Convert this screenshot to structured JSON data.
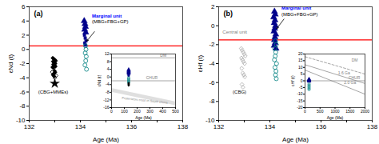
{
  "chart_data": [
    {
      "type": "scatter",
      "title": "(a)",
      "xlabel": "Age (Ma)",
      "ylabel": "εNd (t)",
      "xlim": [
        132,
        138
      ],
      "ylim": [
        -10,
        6
      ],
      "xticks": [
        132,
        {
          "value": 133,
          "label": ""
        },
        134,
        {
          "value": 135,
          "label": ""
        },
        136,
        {
          "value": 137,
          "label": ""
        },
        138
      ],
      "yticks": [
        -10,
        -8,
        -6,
        -4,
        -2,
        0,
        2,
        4,
        6
      ],
      "hlines": [
        {
          "y": 0.5,
          "color": "red"
        }
      ],
      "series": [
        {
          "color": "#000000",
          "marker": "diamond",
          "x": [
            132.92,
            132.95,
            132.98,
            133.01,
            133.04,
            132.93,
            132.96,
            132.99,
            133.02,
            132.94,
            132.97,
            133.0,
            133.03,
            132.91,
            132.95,
            132.99,
            133.02,
            132.96,
            132.93,
            132.98
          ],
          "values": [
            -1.2,
            -1.3,
            -1.4,
            -1.5,
            -1.6,
            -1.7,
            -1.8,
            -1.9,
            -2.0,
            -2.1,
            -2.2,
            -2.3,
            -2.4,
            -2.5,
            -2.6,
            -3.0,
            -3.2,
            -3.4,
            -3.6,
            -3.8
          ]
        },
        {
          "color": "#000000",
          "marker": "open diamond",
          "x": [
            132.9,
            132.95,
            133.05,
            133.0
          ],
          "values": [
            -3.2,
            -3.5,
            -3.7,
            -4.0
          ]
        },
        {
          "color": "#000000",
          "marker": "star",
          "x": [
            133.0
          ],
          "values": [
            -4.8
          ]
        },
        {
          "color": "#00008B",
          "marker": "triangle",
          "x": [
            134.15,
            134.18,
            134.2,
            134.17,
            134.21
          ],
          "values": [
            4.0,
            3.6,
            3.2,
            2.8,
            2.4
          ]
        },
        {
          "color": "#00008B",
          "marker": "square",
          "x": [
            134.16,
            134.19,
            134.22,
            134.17,
            134.2
          ],
          "values": [
            2.0,
            1.6,
            1.2,
            0.9,
            0.6
          ]
        },
        {
          "color": "#008080",
          "marker": "open circle",
          "x": [
            134.2,
            134.22,
            134.19,
            134.23,
            134.21,
            134.18,
            134.24
          ],
          "values": [
            0.5,
            0.0,
            -0.5,
            -1.0,
            -1.6,
            -2.2,
            -2.8
          ]
        }
      ],
      "annotations": [
        {
          "text": "(CBG+MMEs)",
          "x": 132.35,
          "y": -6.2,
          "color": "black"
        },
        {
          "text": "Marginal unit",
          "x": 134.45,
          "y": 4.5,
          "color": "blue",
          "font_weight": "bold"
        },
        {
          "text": "(MBG+FBG+GP)",
          "x": 134.45,
          "y": 3.65,
          "color": "black"
        }
      ],
      "arrows": [
        {
          "x1": 134.55,
          "y1": 2.5,
          "x2": 134.26,
          "y2": 1.2,
          "color": "black"
        }
      ]
    },
    {
      "type": "scatter",
      "xlabel": "Age (Ma)",
      "ylabel": "εNd (t)",
      "xlim": [
        0,
        500
      ],
      "ylim": [
        -16,
        12
      ],
      "xticks": [
        0,
        100,
        200,
        300,
        400,
        500
      ],
      "yticks": [
        -16,
        -12,
        -8,
        -4,
        0,
        4,
        8,
        12
      ],
      "hlines": [
        {
          "y": -2,
          "color": "gray",
          "label": "CHUR",
          "label_x": 270,
          "label_y": -1.2
        }
      ],
      "lines": [
        {
          "x": [
            0,
            500
          ],
          "values": [
            10,
            10
          ],
          "color": "gray",
          "line_style": "solid",
          "label": "DM",
          "label_x": 380,
          "label_y": 10.5
        }
      ],
      "bands": [
        {
          "x": [
            0,
            500
          ],
          "upper": [
            -6,
            -13
          ],
          "lower": [
            -8,
            -15
          ],
          "color": "gray",
          "label": "Proterozoic crust in South China",
          "label_x": 80,
          "label_y": -11.5
        }
      ],
      "series": [
        {
          "color": "#00008B",
          "marker": "triangle",
          "x": [
            134,
            134,
            134,
            134,
            134
          ],
          "values": [
            3.8,
            3.3,
            2.8,
            2.3,
            1.9
          ]
        },
        {
          "color": "#00008B",
          "marker": "square",
          "x": [
            134,
            134,
            134
          ],
          "values": [
            1.4,
            1.0,
            0.6
          ]
        },
        {
          "color": "#008080",
          "marker": "open circle",
          "x": [
            134,
            134,
            134,
            134
          ],
          "values": [
            -0.5,
            -1.2,
            -2.0,
            -2.8
          ]
        },
        {
          "color": "#000000",
          "marker": "diamond",
          "x": [
            134,
            134,
            134,
            134
          ],
          "values": [
            -3.2,
            -3.6,
            -4.0,
            -4.4
          ]
        }
      ]
    },
    {
      "type": "scatter",
      "title": "(b)",
      "xlabel": "Age (Ma)",
      "ylabel": "εHf (t)",
      "xlim": [
        132,
        138
      ],
      "ylim": [
        -10,
        2
      ],
      "xticks": [
        132,
        {
          "value": 133,
          "label": ""
        },
        134,
        {
          "value": 135,
          "label": ""
        },
        136,
        {
          "value": 137,
          "label": ""
        },
        138
      ],
      "yticks": [
        -10,
        -8,
        -6,
        -4,
        -2,
        0,
        2
      ],
      "hlines": [
        {
          "y": -1.5,
          "color": "red"
        }
      ],
      "series": [
        {
          "color": "#AAAAAA",
          "marker": "open diamond",
          "x": [
            132.88,
            132.92,
            132.96,
            133.0,
            133.04,
            132.89,
            132.93,
            132.97,
            133.01,
            132.9,
            132.94,
            132.98,
            133.02,
            132.91,
            132.95
          ],
          "values": [
            -2.4,
            -2.6,
            -2.8,
            -3.0,
            -3.2,
            -3.4,
            -3.6,
            -3.8,
            -4.0,
            -4.5,
            -5.0,
            -5.2,
            -5.4,
            -6.2,
            -6.5
          ]
        },
        {
          "color": "#00008B",
          "marker": "triangle",
          "x": [
            134.18,
            134.21,
            134.15,
            134.2,
            134.17,
            134.22,
            134.19,
            134.16,
            134.23,
            134.2,
            134.18,
            134.21,
            134.17,
            134.24
          ],
          "values": [
            1.5,
            1.2,
            0.9,
            0.6,
            0.3,
            0.0,
            -0.3,
            -0.6,
            -0.9,
            -1.2,
            -1.5,
            -1.8,
            -2.1,
            -2.4
          ]
        },
        {
          "color": "#008080",
          "marker": "open circle",
          "x": [
            134.22,
            134.25,
            134.19,
            134.23,
            134.21,
            134.18,
            134.26,
            134.2,
            134.24,
            134.22,
            134.25
          ],
          "values": [
            -1.6,
            -2.0,
            -2.4,
            -2.8,
            -3.2,
            -3.6,
            -4.0,
            -4.4,
            -4.8,
            -5.2,
            -5.6
          ]
        }
      ],
      "annotations": [
        {
          "text": "Central unit",
          "x": 132.15,
          "y": -0.85,
          "color": "gray"
        },
        {
          "text": "(CBG)",
          "x": 132.55,
          "y": -7.2,
          "color": "black"
        },
        {
          "text": "Marginal unit",
          "x": 134.45,
          "y": 1.7,
          "color": "blue",
          "font_weight": "bold"
        },
        {
          "text": "(MBG+FBG+GP)",
          "x": 134.45,
          "y": 1.0,
          "color": "black"
        }
      ],
      "arrows": [
        {
          "x1": 134.55,
          "y1": 0.7,
          "x2": 134.27,
          "y2": -0.3,
          "color": "black"
        }
      ]
    },
    {
      "type": "scatter",
      "xlabel": "Age (Ma)",
      "ylabel": "εHf (t)",
      "xlim": [
        0,
        2000
      ],
      "ylim": [
        -20,
        20
      ],
      "xticks": [
        0,
        500,
        1000,
        1500,
        2000
      ],
      "yticks": [
        -20,
        -15,
        -10,
        -5,
        0,
        5,
        10,
        15,
        20
      ],
      "hlines": [
        {
          "y": 0,
          "color": "gray",
          "label": "CHUR",
          "label_x": 1450,
          "label_y": 1.2
        }
      ],
      "lines": [
        {
          "x": [
            0,
            2000
          ],
          "values": [
            18,
            5
          ],
          "color": "gray",
          "line_style": "dashed",
          "label": "DM",
          "label_x": 1550,
          "label_y": 14.5
        },
        {
          "x": [
            0,
            2000
          ],
          "values": [
            12,
            -2
          ],
          "color": "gray",
          "line_style": "solid",
          "label": "1.6 Ga",
          "label_x": 1100,
          "label_y": 4.5
        },
        {
          "x": [
            0,
            2000
          ],
          "values": [
            8,
            -10
          ],
          "color": "gray",
          "line_style": "solid",
          "label": "2.0 Ga",
          "label_x": 1300,
          "label_y": -2.5
        }
      ],
      "series": [
        {
          "color": "#00008B",
          "marker": "triangle",
          "x": [
            134,
            134,
            134,
            134,
            134
          ],
          "values": [
            1.2,
            0.8,
            0.4,
            0.0,
            -0.4
          ]
        },
        {
          "color": "#008080",
          "marker": "open circle",
          "x": [
            134,
            134,
            134,
            134,
            134
          ],
          "values": [
            -2.5,
            -3.5,
            -4.5,
            -5.5,
            -6.5
          ]
        }
      ]
    }
  ]
}
